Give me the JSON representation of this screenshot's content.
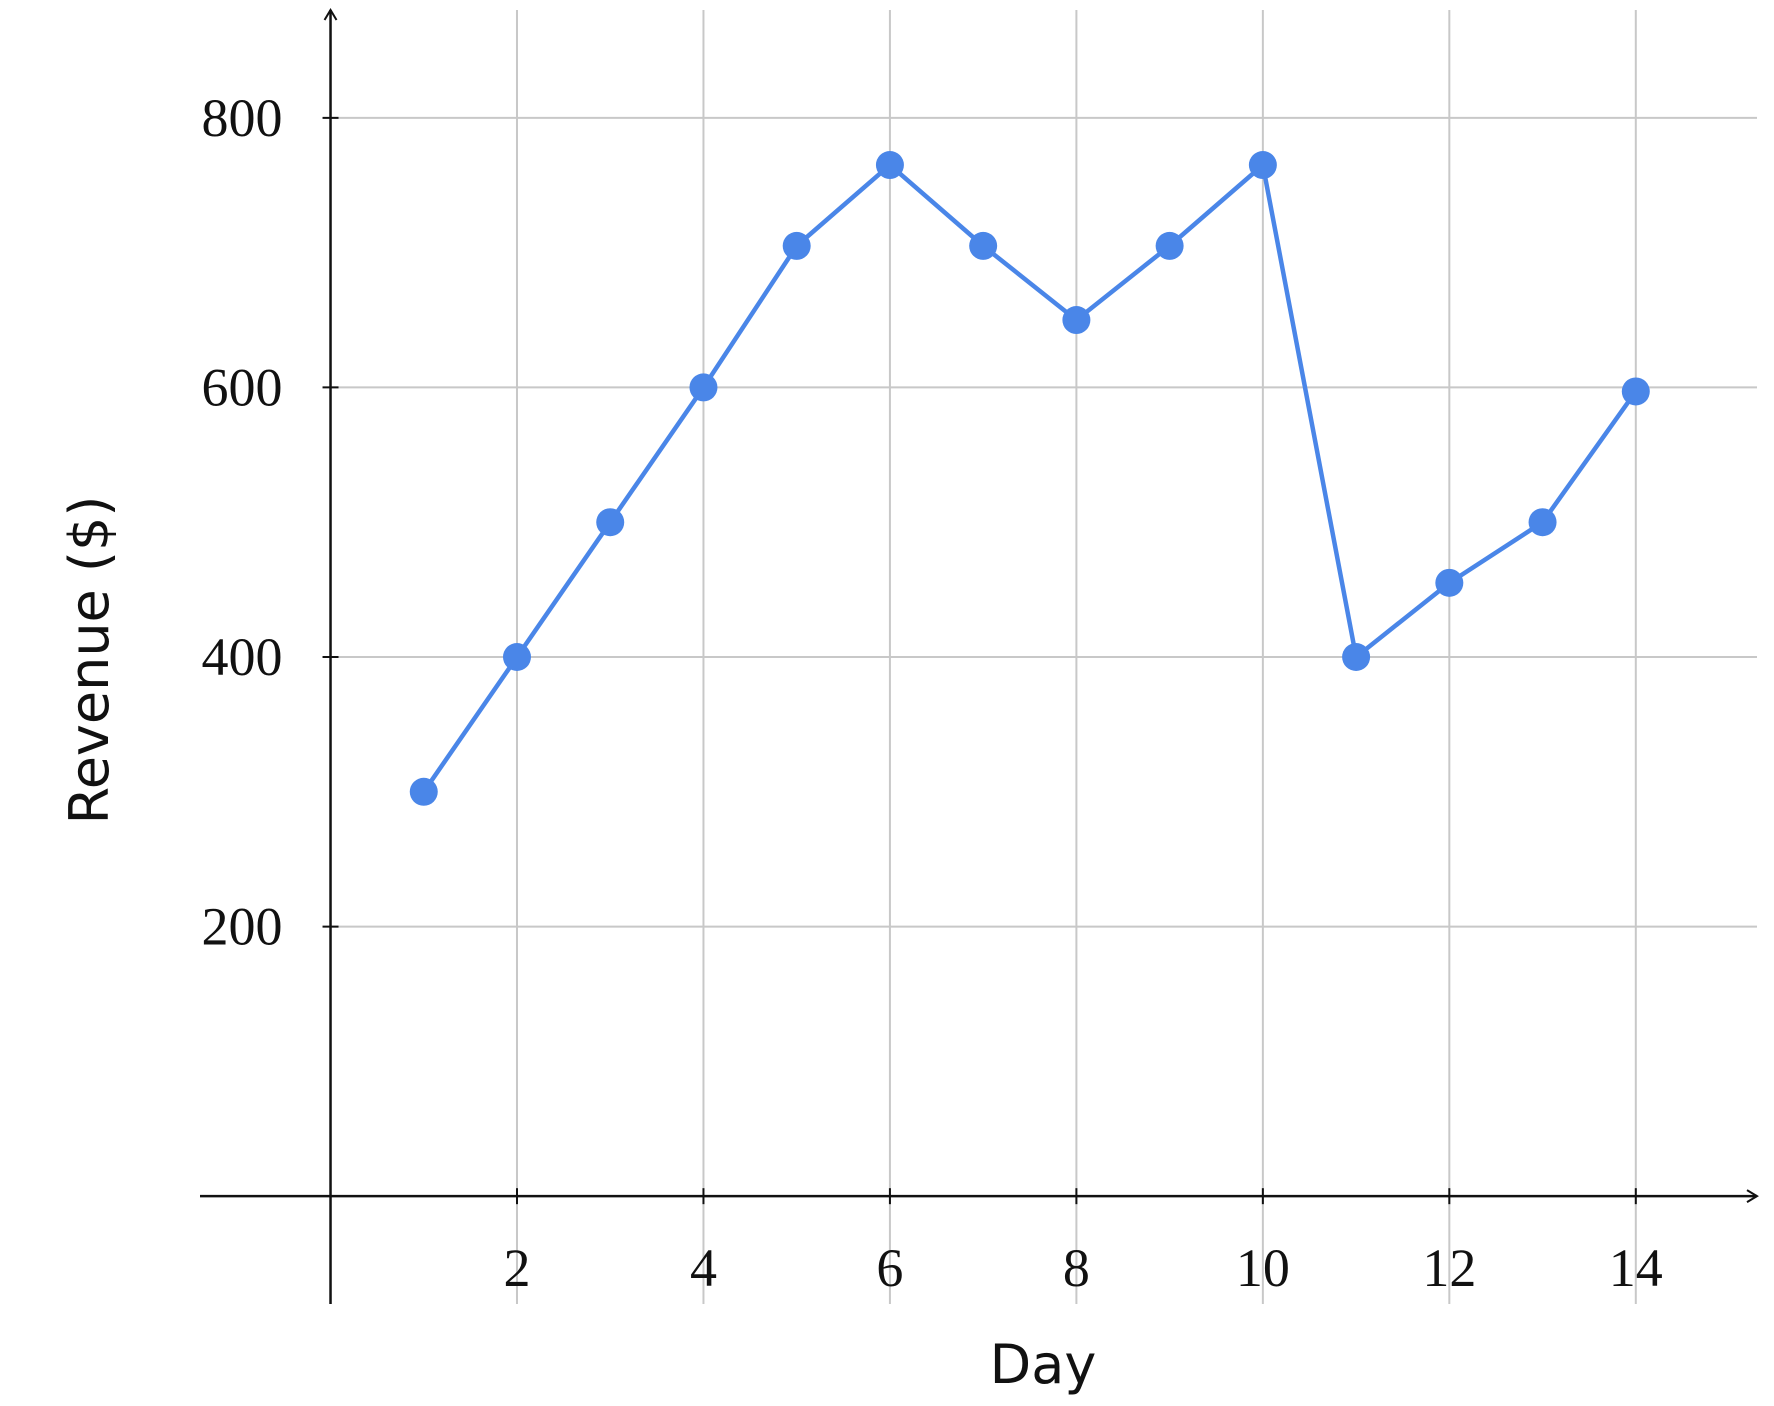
{
  "chart_data": {
    "type": "line",
    "x_label": "Day",
    "y_label": "Revenue ($)",
    "x": [
      1,
      2,
      3,
      4,
      5,
      6,
      7,
      8,
      9,
      10,
      11,
      12,
      13,
      14
    ],
    "series": [
      {
        "name": "Revenue",
        "color": "#4a86e8",
        "values": [
          300,
          400,
          500,
          600,
          705,
          765,
          705,
          650,
          705,
          765,
          400,
          455,
          500,
          597
        ]
      }
    ],
    "xlim": [
      -1.4,
      15.3
    ],
    "ylim": [
      -80,
      880
    ],
    "xticks": [
      2,
      4,
      6,
      8,
      10,
      12,
      14
    ],
    "yticks": [
      200,
      400,
      600,
      800
    ],
    "grid": true
  }
}
